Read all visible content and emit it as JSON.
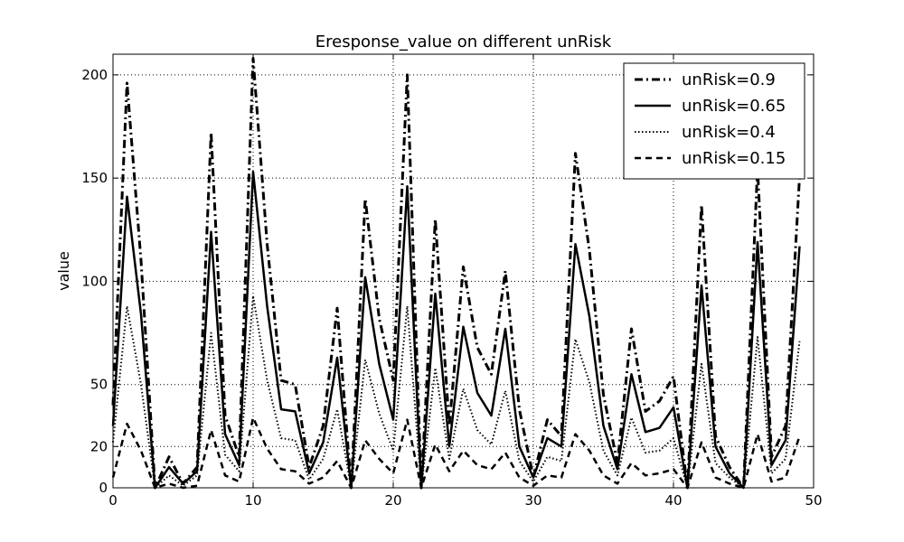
{
  "chart_data": {
    "type": "line",
    "title": "Eresponse_value on different unRisk",
    "xlabel": "",
    "ylabel": "value",
    "xlim": [
      0,
      50
    ],
    "ylim": [
      0,
      210
    ],
    "xticks": [
      0,
      10,
      20,
      30,
      40,
      50
    ],
    "yticks": [
      0,
      20,
      50,
      100,
      150,
      200
    ],
    "grid": true,
    "legend_position": "top-right",
    "x": [
      0,
      1,
      2,
      3,
      4,
      5,
      6,
      7,
      8,
      9,
      10,
      11,
      12,
      13,
      14,
      15,
      16,
      17,
      18,
      19,
      20,
      21,
      22,
      23,
      24,
      25,
      26,
      27,
      28,
      29,
      30,
      31,
      32,
      33,
      34,
      35,
      36,
      37,
      38,
      39,
      40,
      41,
      42,
      43,
      44,
      45,
      46,
      47,
      48,
      49
    ],
    "series": [
      {
        "name": "unRisk=0.9",
        "style": "dashdot",
        "values": [
          40,
          196,
          110,
          0,
          15,
          2,
          10,
          172,
          35,
          15,
          208,
          118,
          52,
          50,
          10,
          30,
          87,
          0,
          140,
          82,
          52,
          200,
          0,
          130,
          30,
          107,
          68,
          55,
          105,
          38,
          5,
          33,
          25,
          162,
          115,
          45,
          12,
          77,
          37,
          42,
          54,
          0,
          137,
          25,
          10,
          0,
          155,
          15,
          30,
          151
        ]
      },
      {
        "name": "unRisk=0.65",
        "style": "solid",
        "values": [
          30,
          141,
          84,
          0,
          10,
          2,
          8,
          124,
          26,
          11,
          153,
          88,
          38,
          37,
          7,
          22,
          63,
          0,
          102,
          60,
          33,
          146,
          0,
          94,
          20,
          78,
          46,
          35,
          77,
          20,
          5,
          24,
          20,
          118,
          83,
          30,
          9,
          55,
          27,
          29,
          39,
          0,
          98,
          20,
          7,
          0,
          119,
          11,
          23,
          117
        ]
      },
      {
        "name": "unRisk=0.4",
        "style": "dotted",
        "values": [
          22,
          88,
          50,
          0,
          6,
          1,
          6,
          75,
          16,
          8,
          93,
          52,
          24,
          23,
          4,
          14,
          38,
          0,
          62,
          36,
          18,
          88,
          0,
          58,
          14,
          48,
          28,
          21,
          47,
          13,
          3,
          15,
          13,
          72,
          51,
          18,
          6,
          34,
          17,
          18,
          24,
          0,
          60,
          12,
          5,
          0,
          73,
          7,
          14,
          71
        ]
      },
      {
        "name": "unRisk=0.15",
        "style": "dashed",
        "values": [
          5,
          31,
          18,
          0,
          2,
          0,
          1,
          28,
          6,
          3,
          34,
          19,
          9,
          8,
          2,
          5,
          13,
          0,
          23,
          14,
          7,
          33,
          0,
          21,
          8,
          18,
          11,
          9,
          17,
          5,
          1,
          6,
          5,
          26,
          18,
          6,
          2,
          12,
          6,
          7,
          9,
          0,
          22,
          5,
          2,
          0,
          26,
          3,
          5,
          25
        ]
      }
    ]
  }
}
